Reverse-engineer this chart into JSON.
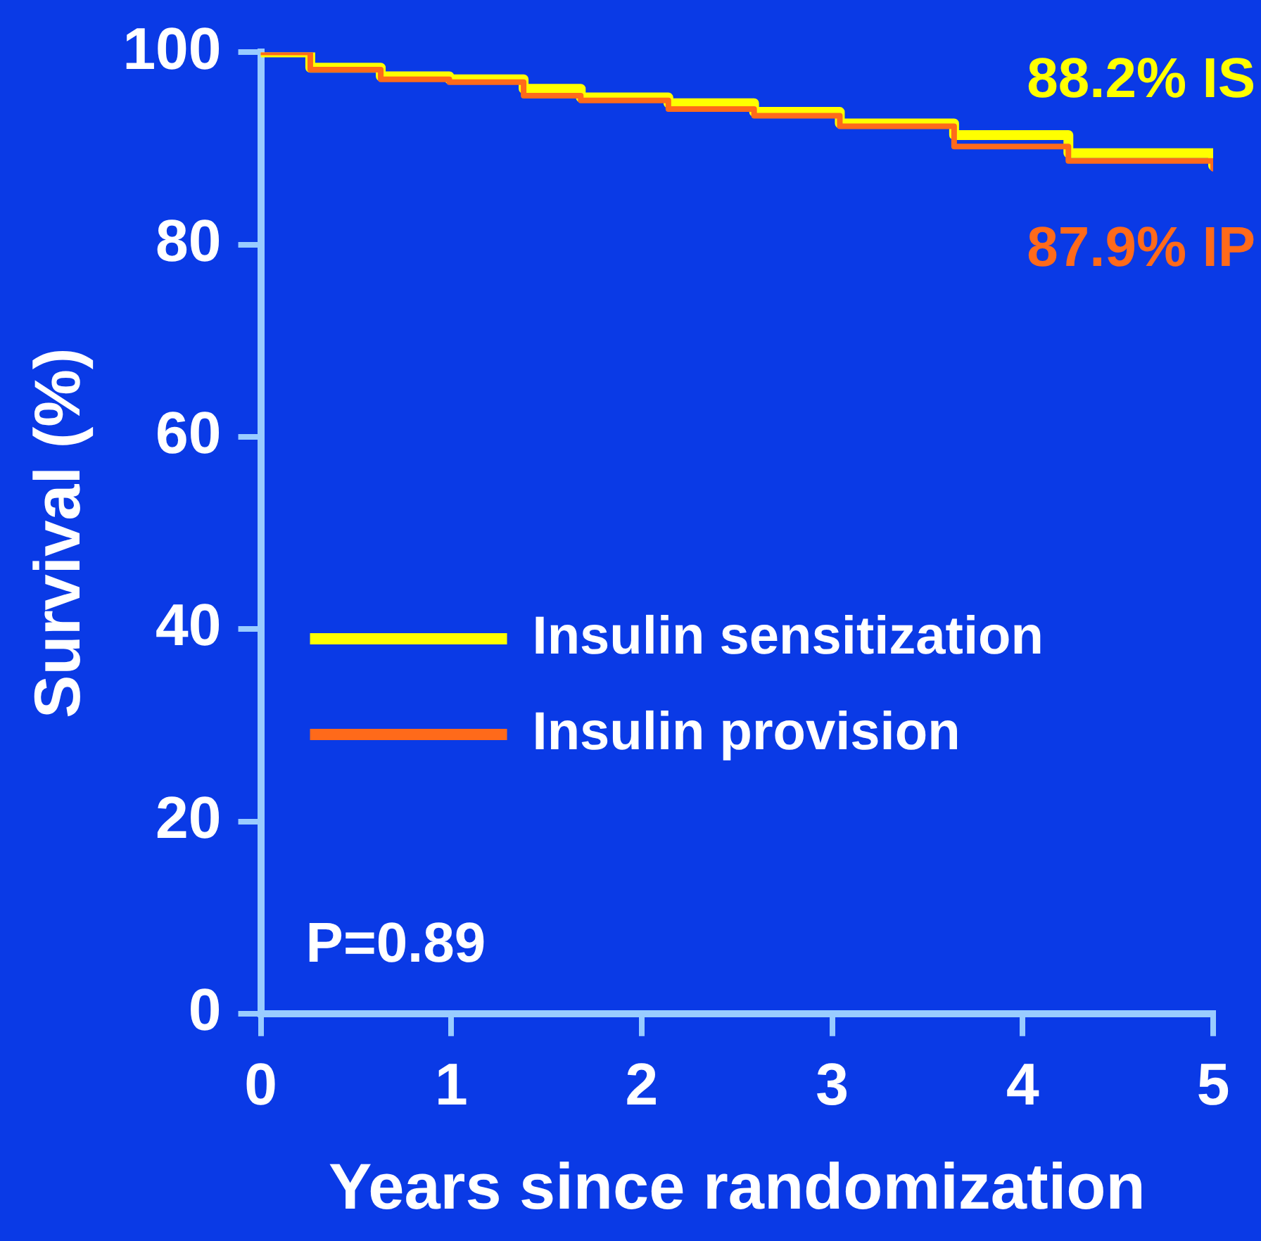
{
  "chart_data": {
    "type": "step",
    "xlabel": "Years since randomization",
    "ylabel": "Survival (%)",
    "xlim": [
      0,
      5
    ],
    "xticks": [
      0,
      1,
      2,
      3,
      4,
      5
    ],
    "ylim": [
      0,
      100
    ],
    "yticks": [
      0,
      20,
      40,
      60,
      80,
      100
    ],
    "grid": false,
    "legend": "left",
    "marker": "none",
    "series": [
      {
        "name": "Insulin sensitization",
        "color": "#ffff00",
        "x": [
          0,
          0.26,
          0.63,
          0.99,
          1.38,
          1.68,
          2.14,
          2.59,
          3.04,
          3.64,
          4.24,
          5
        ],
        "values": [
          100,
          98.4,
          97.5,
          97.2,
          96.2,
          95.3,
          94.7,
          93.8,
          92.6,
          91.4,
          89.5,
          88.2
        ]
      },
      {
        "name": "Insulin provision",
        "color": "#ff6a1a",
        "x": [
          0,
          0.26,
          0.63,
          0.99,
          1.38,
          1.68,
          2.14,
          2.59,
          3.04,
          3.64,
          4.24,
          5
        ],
        "values": [
          100,
          98.2,
          97.2,
          96.9,
          95.5,
          95.0,
          94.1,
          93.4,
          92.3,
          90.2,
          88.7,
          87.9
        ]
      }
    ],
    "annotations": [
      {
        "text": "88.2% IS",
        "x": 5,
        "y": 88.2
      },
      {
        "text": "87.9% IP",
        "x": 5,
        "y": 87.9
      },
      "P=0.89"
    ]
  }
}
